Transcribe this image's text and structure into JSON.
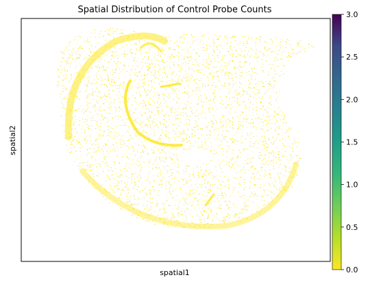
{
  "chart_data": {
    "type": "scatter",
    "title": "Spatial Distribution of Control Probe Counts",
    "xlabel": "spatial1",
    "ylabel": "spatial2",
    "x_ticks": [],
    "y_ticks": [],
    "grid": false,
    "colorbar": {
      "colormap": "viridis",
      "range": [
        0.0,
        3.0
      ],
      "ticks": [
        "0.0",
        "0.5",
        "1.0",
        "1.5",
        "2.0",
        "2.5",
        "3.0"
      ],
      "placement": "right"
    },
    "dominant_value": 0.0,
    "point_color": "#fde725",
    "shape": "brain-coronal-section-tissue-spots"
  }
}
